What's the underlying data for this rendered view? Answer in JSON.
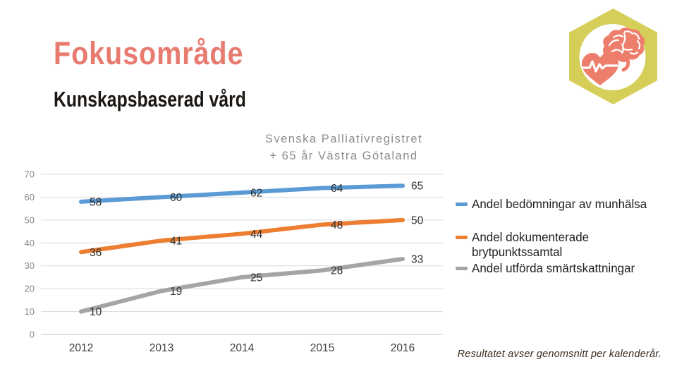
{
  "slide": {
    "title": "Fokusområde",
    "subtitle": "Kunskapsbaserad vård",
    "footer": "Resultatet avser genomsnitt per kalenderår."
  },
  "colors": {
    "title_accent": "#E87B70",
    "icon_hexagon": "#D5CE58",
    "icon_accent": "#EE7E6C",
    "gridline": "#D9D9D9",
    "axis_line": "#C6C6C6"
  },
  "icon": {
    "name": "brain-heart-hexagon"
  },
  "chart_data": {
    "type": "line",
    "title_lines": [
      "Svenska Palliativregistret",
      "+ 65 år Västra Götaland"
    ],
    "categories": [
      "2012",
      "2013",
      "2014",
      "2015",
      "2016"
    ],
    "series": [
      {
        "name": "Andel bedömningar av munhälsa",
        "color": "#5B9BD5",
        "values": [
          58,
          60,
          62,
          64,
          65
        ]
      },
      {
        "name": "Andel dokumenterade brytpunktssamtal",
        "color": "#ED7D31",
        "values": [
          36,
          41,
          44,
          48,
          50
        ]
      },
      {
        "name": "Andel utförda smärtskattningar",
        "color": "#A5A5A5",
        "values": [
          10,
          19,
          25,
          28,
          33
        ]
      }
    ],
    "ylim": [
      0,
      70
    ],
    "ytick_step": 10,
    "grid": true,
    "data_labels": true,
    "legend_position": "right",
    "xlabel": "",
    "ylabel": ""
  }
}
